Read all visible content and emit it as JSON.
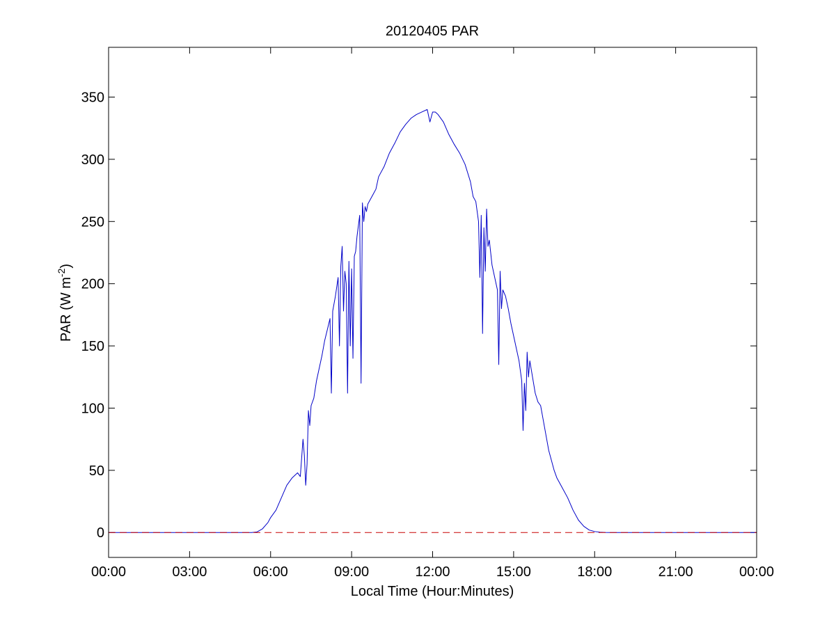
{
  "chart_data": {
    "type": "line",
    "title": "20120405 PAR",
    "xlabel": "Local Time (Hour:Minutes)",
    "ylabel_main": "PAR (W m",
    "ylabel_sup": "-2",
    "ylabel_close": ")",
    "xlim": [
      0,
      24
    ],
    "ylim": [
      -20,
      390
    ],
    "x_ticks": [
      0,
      3,
      6,
      9,
      12,
      15,
      18,
      21,
      24
    ],
    "x_tick_labels": [
      "00:00",
      "03:00",
      "06:00",
      "09:00",
      "12:00",
      "15:00",
      "18:00",
      "21:00",
      "00:00"
    ],
    "y_ticks": [
      0,
      50,
      100,
      150,
      200,
      250,
      300,
      350
    ],
    "y_tick_labels": [
      "0",
      "50",
      "100",
      "150",
      "200",
      "250",
      "300",
      "350"
    ],
    "grid": false,
    "series": [
      {
        "color": "#0000c8",
        "style": "solid",
        "x": [
          0,
          5.3,
          5.5,
          5.7,
          5.9,
          6.0,
          6.2,
          6.4,
          6.6,
          6.8,
          7.0,
          7.1,
          7.2,
          7.25,
          7.3,
          7.35,
          7.4,
          7.45,
          7.5,
          7.6,
          7.7,
          7.8,
          7.9,
          8.0,
          8.1,
          8.2,
          8.25,
          8.3,
          8.4,
          8.5,
          8.55,
          8.6,
          8.65,
          8.7,
          8.75,
          8.8,
          8.85,
          8.9,
          8.95,
          9.0,
          9.05,
          9.1,
          9.15,
          9.2,
          9.3,
          9.35,
          9.4,
          9.45,
          9.5,
          9.55,
          9.6,
          9.7,
          9.8,
          9.9,
          10.0,
          10.2,
          10.4,
          10.6,
          10.8,
          11.0,
          11.2,
          11.4,
          11.6,
          11.8,
          11.9,
          12.0,
          12.1,
          12.2,
          12.4,
          12.6,
          12.8,
          13.0,
          13.2,
          13.4,
          13.5,
          13.6,
          13.7,
          13.75,
          13.8,
          13.85,
          13.9,
          13.95,
          14.0,
          14.05,
          14.1,
          14.15,
          14.2,
          14.3,
          14.4,
          14.45,
          14.5,
          14.55,
          14.6,
          14.7,
          14.8,
          14.9,
          15.0,
          15.1,
          15.2,
          15.3,
          15.35,
          15.4,
          15.45,
          15.5,
          15.55,
          15.6,
          15.7,
          15.8,
          15.9,
          16.0,
          16.1,
          16.2,
          16.3,
          16.4,
          16.5,
          16.6,
          16.8,
          17.0,
          17.2,
          17.4,
          17.6,
          17.8,
          18.0,
          18.2,
          18.4,
          18.6,
          18.8,
          24
        ],
        "y": [
          0,
          0,
          0.5,
          3,
          8,
          12,
          18,
          28,
          38,
          44,
          48,
          45,
          75,
          62,
          38,
          55,
          98,
          86,
          102,
          108,
          122,
          132,
          142,
          154,
          163,
          172,
          112,
          178,
          190,
          205,
          150,
          214,
          230,
          178,
          210,
          200,
          112,
          218,
          150,
          212,
          140,
          222,
          226,
          238,
          255,
          120,
          265,
          250,
          262,
          258,
          264,
          268,
          272,
          276,
          286,
          294,
          305,
          313,
          322,
          328,
          333,
          336,
          338,
          340,
          330,
          338,
          338,
          336,
          330,
          320,
          312,
          305,
          296,
          282,
          270,
          266,
          250,
          205,
          255,
          160,
          245,
          210,
          260,
          230,
          235,
          225,
          215,
          205,
          195,
          135,
          210,
          180,
          195,
          190,
          180,
          168,
          158,
          148,
          138,
          122,
          82,
          120,
          98,
          145,
          125,
          138,
          125,
          112,
          105,
          102,
          90,
          78,
          66,
          58,
          50,
          44,
          36,
          28,
          18,
          10,
          5,
          2,
          0.8,
          0.3,
          0.1,
          0,
          0,
          0
        ]
      },
      {
        "color": "#c80000",
        "style": "dashed",
        "x": [
          0,
          24
        ],
        "y": [
          0,
          0
        ]
      }
    ]
  }
}
